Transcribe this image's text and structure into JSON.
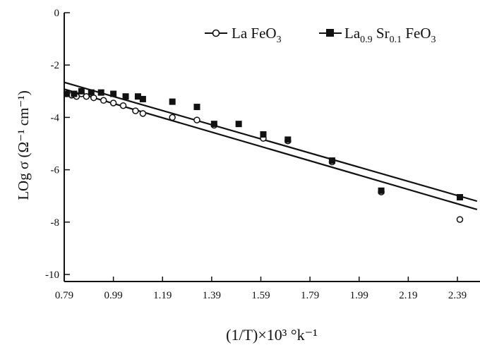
{
  "chart_data": {
    "type": "scatter",
    "title": "",
    "xlabel": "(1/T)×10³ °k⁻¹",
    "ylabel": "LOg σ (Ω⁻¹ cm⁻¹)",
    "xlim": [
      0.79,
      2.47
    ],
    "ylim": [
      -10.4,
      0
    ],
    "xticks": [
      0.79,
      0.99,
      1.19,
      1.39,
      1.59,
      1.79,
      1.99,
      2.19,
      2.39
    ],
    "xtick_labels": [
      "0.79",
      "0.99",
      "1.19",
      "1.39",
      "1.59",
      "1.79",
      "1.99",
      "2.19",
      "2.39"
    ],
    "yticks": [
      0,
      -2,
      -4,
      -6,
      -8,
      -10
    ],
    "ytick_labels": [
      "0",
      "-2",
      "-4",
      "-6",
      "-8",
      "-10"
    ],
    "grid": false,
    "legend_position": "top-right",
    "series": [
      {
        "name": "La FeO3",
        "marker": "open-circle",
        "color": "#111111",
        "x": [
          0.8,
          0.82,
          0.84,
          0.86,
          0.88,
          0.91,
          0.95,
          0.99,
          1.03,
          1.08,
          1.11,
          1.23,
          1.33,
          1.4,
          1.6,
          1.7,
          1.88,
          2.08,
          2.4
        ],
        "y": [
          -3.1,
          -3.15,
          -3.2,
          -3.1,
          -3.2,
          -3.25,
          -3.35,
          -3.45,
          -3.55,
          -3.75,
          -3.85,
          -4.0,
          -4.1,
          -4.3,
          -4.8,
          -4.9,
          -5.7,
          -6.85,
          -7.9
        ],
        "fit": {
          "x": [
            0.79,
            2.47
          ],
          "y": [
            -2.92,
            -7.52
          ]
        }
      },
      {
        "name": "La0.9 Sr0.1 FeO3",
        "marker": "filled-square",
        "color": "#111111",
        "x": [
          0.8,
          0.83,
          0.86,
          0.9,
          0.94,
          0.99,
          1.04,
          1.09,
          1.11,
          1.23,
          1.33,
          1.4,
          1.5,
          1.6,
          1.7,
          1.88,
          2.08,
          2.4
        ],
        "y": [
          -3.1,
          -3.1,
          -3.0,
          -3.05,
          -3.05,
          -3.1,
          -3.2,
          -3.2,
          -3.3,
          -3.4,
          -3.6,
          -4.25,
          -4.25,
          -4.65,
          -4.85,
          -5.65,
          -6.8,
          -7.05
        ],
        "fit": {
          "x": [
            0.79,
            2.47
          ],
          "y": [
            -2.66,
            -7.2
          ]
        }
      }
    ],
    "legend": [
      {
        "label": "La FeO",
        "sub": "3",
        "marker": "open-circle"
      },
      {
        "label": "La",
        "sub": "0.9",
        "label2": " Sr",
        "sub2": "0.1",
        "label3": " FeO",
        "sub3": "3",
        "marker": "filled-square"
      }
    ]
  }
}
